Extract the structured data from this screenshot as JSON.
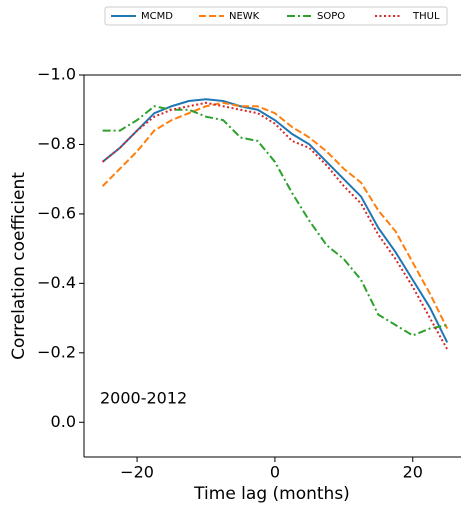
{
  "chart_data": {
    "type": "line",
    "xlabel": "Time lag (months)",
    "ylabel": "Correlation coefficient",
    "annotation": "2000-2012",
    "x": [
      -25,
      -22.5,
      -20,
      -17.5,
      -15,
      -12.5,
      -10,
      -7.5,
      -5,
      -2.5,
      0,
      2.5,
      5,
      7.5,
      10,
      12.5,
      15,
      17.5,
      20,
      22.5,
      25
    ],
    "series": [
      {
        "name": "MCMD",
        "color": "#1f77b4",
        "linestyle": "solid",
        "values": [
          -0.75,
          -0.79,
          -0.84,
          -0.89,
          -0.91,
          -0.925,
          -0.93,
          -0.925,
          -0.91,
          -0.9,
          -0.87,
          -0.83,
          -0.8,
          -0.75,
          -0.7,
          -0.65,
          -0.56,
          -0.49,
          -0.41,
          -0.33,
          -0.23
        ]
      },
      {
        "name": "NEWK",
        "color": "#ff7f0e",
        "linestyle": "dashed",
        "values": [
          -0.68,
          -0.73,
          -0.78,
          -0.84,
          -0.87,
          -0.89,
          -0.91,
          -0.92,
          -0.91,
          -0.91,
          -0.89,
          -0.85,
          -0.82,
          -0.78,
          -0.73,
          -0.69,
          -0.61,
          -0.55,
          -0.46,
          -0.37,
          -0.27
        ]
      },
      {
        "name": "SOPO",
        "color": "#2ca02c",
        "linestyle": "dashdot",
        "values": [
          -0.84,
          -0.84,
          -0.87,
          -0.91,
          -0.9,
          -0.9,
          -0.88,
          -0.87,
          -0.82,
          -0.81,
          -0.75,
          -0.66,
          -0.58,
          -0.51,
          -0.47,
          -0.41,
          -0.31,
          -0.28,
          -0.25,
          -0.27,
          -0.28
        ]
      },
      {
        "name": "THUL",
        "color": "#d62728",
        "linestyle": "dotted",
        "values": [
          -0.75,
          -0.79,
          -0.84,
          -0.88,
          -0.9,
          -0.91,
          -0.92,
          -0.91,
          -0.9,
          -0.89,
          -0.86,
          -0.81,
          -0.79,
          -0.74,
          -0.68,
          -0.63,
          -0.54,
          -0.47,
          -0.39,
          -0.3,
          -0.21
        ]
      }
    ],
    "xlim": [
      -27.7,
      27.0
    ],
    "xticks": [
      {
        "value": -20,
        "label": "−20"
      },
      0,
      20
    ],
    "ylim": [
      -1.0,
      0.1
    ],
    "yinvert": true,
    "yticks": [
      {
        "value": -1.0,
        "label": "−1.0"
      },
      {
        "value": -0.8,
        "label": "−0.8"
      },
      {
        "value": -0.6,
        "label": "−0.6"
      },
      {
        "value": -0.4,
        "label": "−0.4"
      },
      {
        "value": -0.2,
        "label": "−0.2"
      },
      {
        "value": 0.0,
        "label": "0.0"
      }
    ],
    "legend": "top"
  }
}
